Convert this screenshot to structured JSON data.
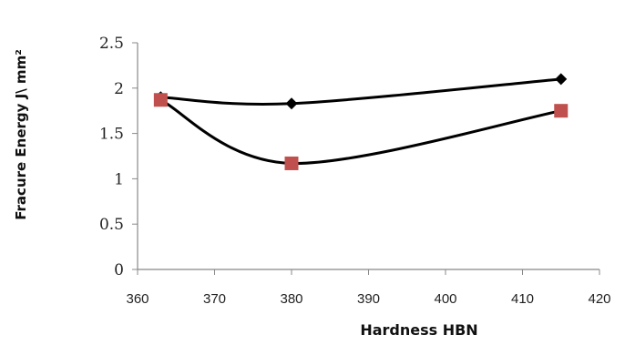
{
  "chart_data": {
    "type": "line",
    "title": "",
    "xlabel": "Hardness  HBN",
    "ylabel": "Fracure Energy   J\\ mm²",
    "xlim": [
      360,
      420
    ],
    "ylim": [
      0,
      2.5
    ],
    "x_ticks": [
      "360",
      "370",
      "380",
      "390",
      "400",
      "410",
      "420"
    ],
    "y_ticks": [
      "0",
      "0.5",
      "1",
      "1.5",
      "2",
      "2.5"
    ],
    "smoothed": true,
    "grid": false,
    "legend": "none",
    "series": [
      {
        "color": "#000000",
        "marker": "diamond",
        "x": [
          363,
          380,
          415
        ],
        "y": [
          1.9,
          1.83,
          2.1
        ]
      },
      {
        "color": "#c0504d",
        "marker": "square",
        "x": [
          363,
          380,
          415
        ],
        "y": [
          1.87,
          1.17,
          1.75
        ]
      }
    ]
  }
}
